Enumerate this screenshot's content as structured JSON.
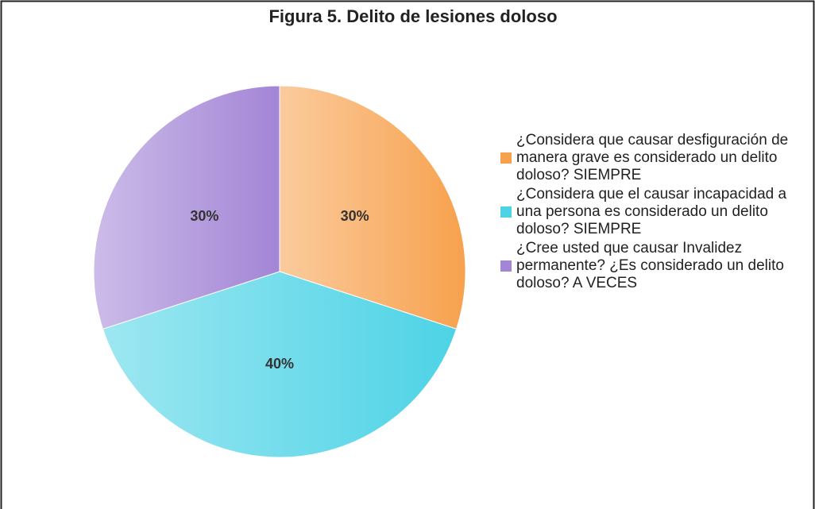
{
  "chart_data": {
    "type": "pie",
    "title": "Figura 5. Delito de lesiones doloso",
    "categories": [
      "¿Considera que causar desfiguración de manera grave es considerado un delito doloso? SIEMPRE",
      "¿Considera que el causar incapacidad a una persona es considerado un delito doloso? SIEMPRE",
      "¿Cree usted que causar Invalidez permanente? ¿Es considerado un delito doloso? A VECES"
    ],
    "values": [
      30,
      40,
      30
    ],
    "value_labels": [
      "30%",
      "40%",
      "30%"
    ],
    "colors": [
      "#f7a14d",
      "#4dd3e6",
      "#a385d6"
    ],
    "legend": "right"
  }
}
